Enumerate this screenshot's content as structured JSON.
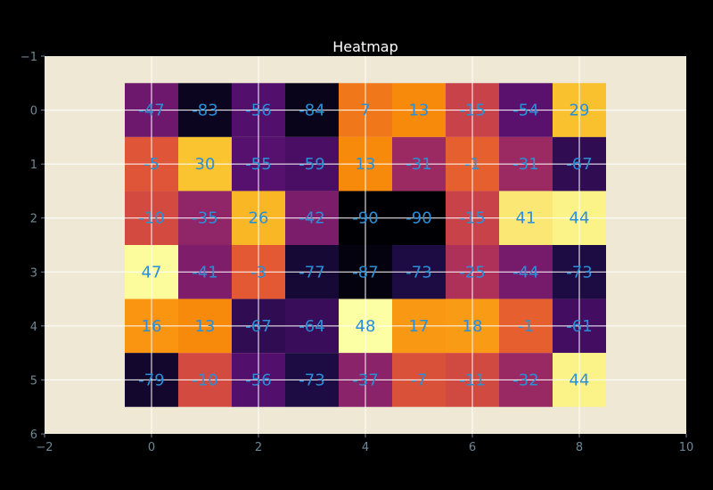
{
  "chart_data": {
    "type": "heatmap",
    "title": "Heatmap",
    "xlabel": "",
    "ylabel": "",
    "xlim": [
      -2,
      10
    ],
    "ylim": [
      6,
      -1
    ],
    "x_ticks": [
      "−2",
      "0",
      "2",
      "4",
      "6",
      "8",
      "10"
    ],
    "y_ticks": [
      "−1",
      "0",
      "1",
      "2",
      "3",
      "4",
      "5",
      "6"
    ],
    "grid": true,
    "colormap": "inferno",
    "value_range": [
      -90,
      48
    ],
    "rows": 6,
    "cols": 9,
    "values": [
      [
        -47,
        -83,
        -56,
        -84,
        7,
        13,
        -15,
        -54,
        29
      ],
      [
        -5,
        30,
        -55,
        -59,
        13,
        -31,
        -1,
        -31,
        -67
      ],
      [
        -10,
        -35,
        26,
        -42,
        -90,
        -90,
        -15,
        41,
        44
      ],
      [
        47,
        -41,
        -3,
        -77,
        -87,
        -73,
        -25,
        -44,
        -73
      ],
      [
        16,
        13,
        -67,
        -64,
        48,
        17,
        18,
        -1,
        -61
      ],
      [
        -79,
        -10,
        -56,
        -73,
        -37,
        -7,
        -11,
        -32,
        44
      ]
    ]
  },
  "colors": {
    "figure_bg": "#000000",
    "axes_bg": "#eee8d5",
    "grid": "#ffffff",
    "tick_text": "#6f8796",
    "title_text": "#ffffff",
    "cell_text": "#2a8fd6"
  }
}
